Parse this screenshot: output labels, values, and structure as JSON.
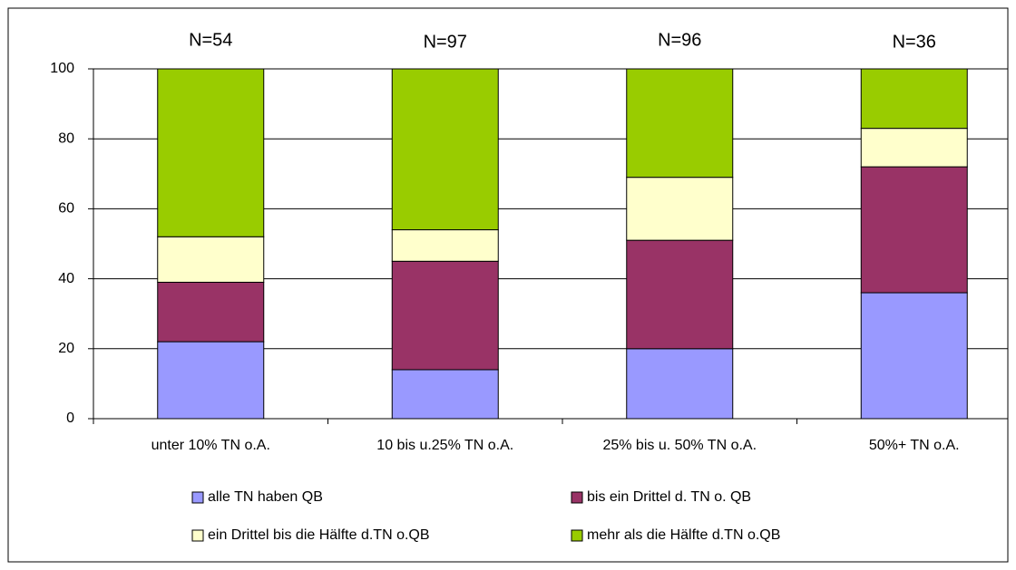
{
  "chart_data": {
    "type": "stacked_bar",
    "categories": [
      "unter 10% TN o.A.",
      "10 bis u.25% TN o.A.",
      "25% bis u. 50% TN o.A.",
      "50%+ TN o.A."
    ],
    "annotations": [
      "N=54",
      "N=97",
      "N=96",
      "N=36"
    ],
    "series": [
      {
        "name": "alle TN haben QB",
        "color": "#9999ff",
        "values": [
          22,
          14,
          20,
          36
        ]
      },
      {
        "name": "bis ein Drittel d. TN o. QB",
        "color": "#993366",
        "values": [
          17,
          31,
          31,
          36
        ]
      },
      {
        "name": "ein Drittel bis die Hälfte d.TN o.QB",
        "color": "#ffffcc",
        "values": [
          13,
          9,
          18,
          11
        ]
      },
      {
        "name": "mehr als die Hälfte d.TN o.QB",
        "color": "#99cc00",
        "values": [
          48,
          46,
          31,
          17
        ]
      }
    ],
    "ylim": [
      0,
      100
    ],
    "yticks": [
      0,
      20,
      40,
      60,
      80,
      100
    ],
    "grid": true
  }
}
